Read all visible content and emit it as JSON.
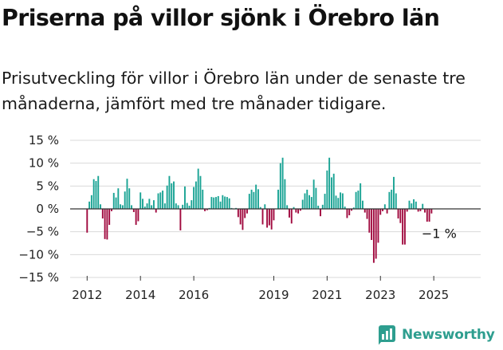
{
  "header": {
    "title": "Priserna på villor sjönk i Örebro län",
    "subtitle": "Prisutveckling för villor i Örebro län under de senaste tre månaderna, jämfört med tre månader tidigare."
  },
  "brand": {
    "name": "Newsworthy",
    "color": "#2e9e8f"
  },
  "colors": {
    "positive": "#19a394",
    "negative": "#a0093e",
    "grid": "#d9d9d9",
    "axis": "#333333"
  },
  "chart_data": {
    "type": "bar",
    "title": "Priserna på villor sjönk i Örebro län",
    "xlabel": "",
    "ylabel": "",
    "ylim": [
      -15,
      15
    ],
    "yticks": [
      15,
      10,
      5,
      0,
      -5,
      -10,
      -15
    ],
    "ytick_labels": [
      "15 %",
      "10 %",
      "5 %",
      "0 %",
      "−5 %",
      "−10 %",
      "−15 %"
    ],
    "xticks": [
      2012,
      2014,
      2016,
      2019,
      2021,
      2023,
      2025
    ],
    "start": "2012-01",
    "frequency": "monthly",
    "grid": true,
    "annotation": {
      "text": "−1 %",
      "x": 2025.2,
      "y": -1
    },
    "values": [
      -5.2,
      1.6,
      3.0,
      6.5,
      6.1,
      7.2,
      1.0,
      -2.1,
      -6.6,
      -6.7,
      -3.5,
      -0.5,
      3.5,
      2.5,
      4.5,
      1.0,
      0.8,
      3.8,
      6.6,
      4.5,
      0.8,
      -0.7,
      -3.5,
      -2.7,
      3.6,
      2.2,
      0.5,
      1.2,
      2.2,
      0.8,
      1.9,
      -0.8,
      3.4,
      3.6,
      4.0,
      1.2,
      5.1,
      7.2,
      5.6,
      6.0,
      1.2,
      0.8,
      -4.7,
      0.9,
      4.9,
      1.3,
      0.7,
      1.9,
      4.8,
      6.0,
      8.8,
      7.2,
      4.2,
      -0.5,
      -0.3,
      0.2,
      2.6,
      2.5,
      2.6,
      2.8,
      1.6,
      3.0,
      2.7,
      2.6,
      2.3,
      0.2,
      -0.1,
      0.2,
      -1.8,
      -3.4,
      -4.6,
      -2.0,
      -1.0,
      3.3,
      4.2,
      3.7,
      5.3,
      4.3,
      0.4,
      -3.4,
      1.0,
      -4.1,
      -3.6,
      -4.5,
      -2.5,
      0.1,
      4.2,
      10.0,
      11.2,
      6.5,
      0.8,
      -1.9,
      -3.2,
      0.4,
      -0.8,
      -1.0,
      -0.4,
      2.0,
      3.4,
      4.2,
      3.0,
      2.6,
      6.4,
      4.6,
      0.7,
      -1.6,
      0.9,
      3.3,
      8.4,
      11.2,
      6.9,
      7.7,
      2.9,
      2.4,
      3.6,
      3.4,
      0.5,
      -2.0,
      -1.4,
      -0.4,
      0.3,
      3.7,
      4.0,
      5.6,
      1.8,
      -0.8,
      -2.2,
      -5.2,
      -6.8,
      -11.8,
      -10.9,
      -7.4,
      -1.3,
      -0.5,
      1.0,
      -1.0,
      3.7,
      4.2,
      7.0,
      3.4,
      -2.1,
      -3.1,
      -7.8,
      -7.8,
      -0.6,
      1.8,
      1.2,
      2.1,
      1.6,
      -0.6,
      -0.5,
      1.1,
      -0.8,
      -2.8,
      -2.8,
      -1.0
    ]
  }
}
